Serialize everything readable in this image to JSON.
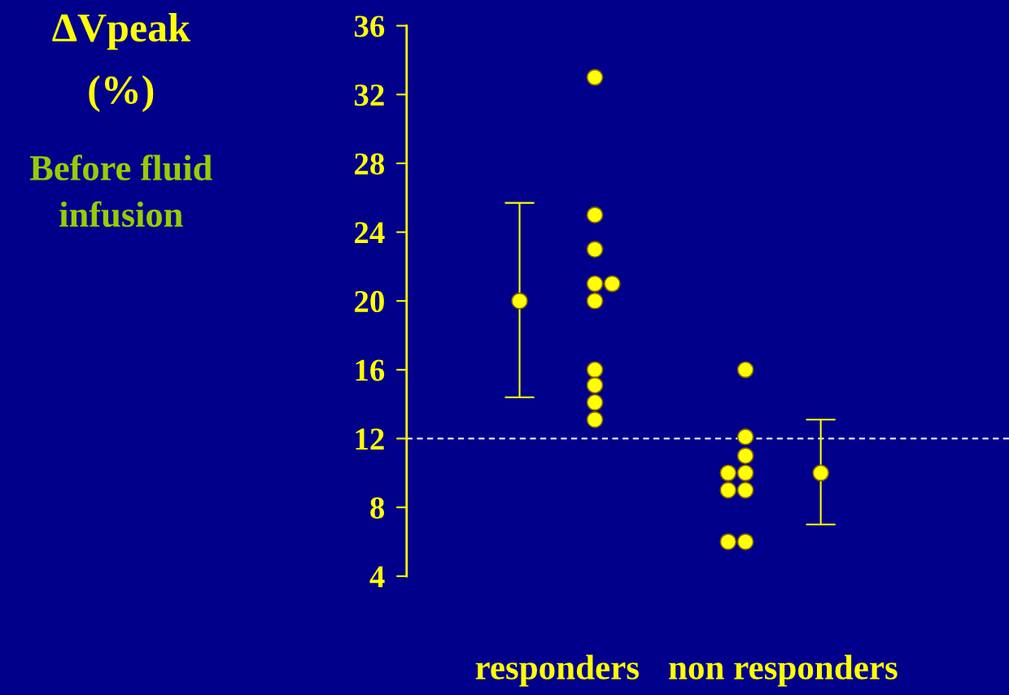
{
  "chart_data": {
    "type": "scatter",
    "title": "ΔVpeak\n(%)",
    "subtitle": "Before fluid infusion",
    "annotations": [
      "responders",
      "non responders"
    ],
    "categories": [
      null,
      null,
      null,
      null,
      null,
      null,
      null,
      null
    ],
    "series": [
      {
        "color": "#ffff00",
        "values": [
          null,
          20,
          null,
          null,
          null,
          10,
          null,
          null
        ],
        "errors": [
          null,
          [
            14.4,
            25.7
          ],
          null,
          null,
          null,
          [
            7,
            13.1
          ],
          null,
          null
        ]
      },
      {
        "color": "#ffff00",
        "values": [
          null,
          null,
          33,
          null,
          16,
          null,
          null,
          null
        ]
      },
      {
        "color": "#ffff00",
        "values": [
          null,
          null,
          25,
          null,
          12.1,
          null,
          null,
          null
        ]
      },
      {
        "color": "#ffff00",
        "values": [
          null,
          null,
          23,
          null,
          11,
          null,
          null,
          null
        ]
      },
      {
        "color": "#ffff00",
        "values": [
          null,
          null,
          21,
          null,
          10,
          null,
          null,
          null
        ]
      },
      {
        "color": "#ffff00",
        "values": [
          null,
          null,
          21,
          null,
          10,
          null,
          null,
          null
        ]
      },
      {
        "color": "#ffff00",
        "values": [
          null,
          null,
          20,
          null,
          9,
          null,
          null,
          null
        ]
      },
      {
        "color": "#ffff00",
        "values": [
          null,
          null,
          16,
          null,
          9,
          null,
          null,
          null
        ]
      },
      {
        "color": "#ffff00",
        "values": [
          null,
          null,
          15.1,
          null,
          6,
          null,
          null,
          null
        ]
      },
      {
        "color": "#ffff00",
        "values": [
          null,
          null,
          14.1,
          null,
          6,
          null,
          null,
          null
        ]
      },
      {
        "color": "#ffff00",
        "values": [
          null,
          null,
          13.1,
          null,
          null,
          null,
          null,
          null
        ]
      }
    ],
    "ylim": [
      4,
      36
    ],
    "yticks": [
      4,
      8,
      12,
      16,
      20,
      24,
      28,
      32,
      36
    ],
    "ref_lines": [
      {
        "axis": "y",
        "value": 12,
        "color": "#ffffff",
        "line_style": "dashed"
      }
    ],
    "marker": "circle",
    "grid": false,
    "legend": false
  }
}
